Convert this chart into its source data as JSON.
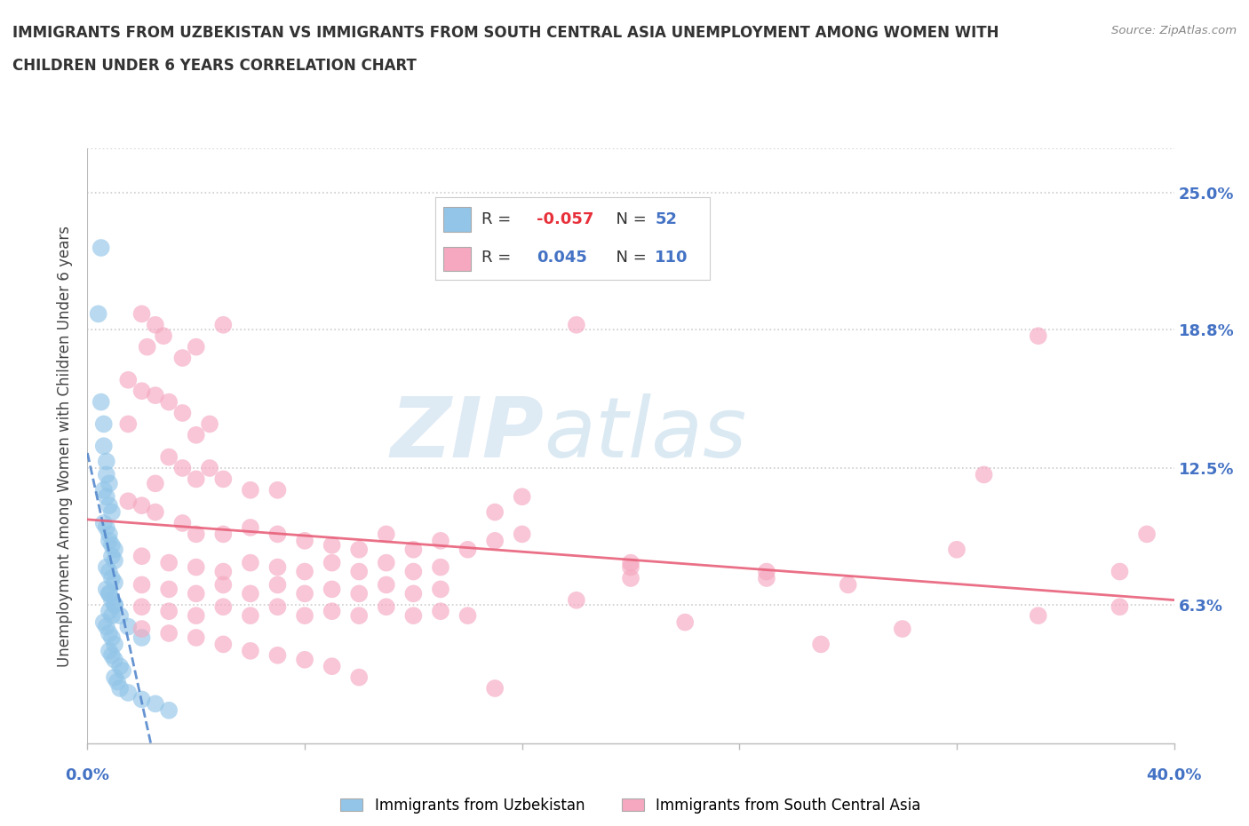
{
  "title_line1": "IMMIGRANTS FROM UZBEKISTAN VS IMMIGRANTS FROM SOUTH CENTRAL ASIA UNEMPLOYMENT AMONG WOMEN WITH",
  "title_line2": "CHILDREN UNDER 6 YEARS CORRELATION CHART",
  "source": "Source: ZipAtlas.com",
  "ylabel": "Unemployment Among Women with Children Under 6 years",
  "ytick_labels": [
    "25.0%",
    "18.8%",
    "12.5%",
    "6.3%"
  ],
  "ytick_values": [
    0.25,
    0.188,
    0.125,
    0.063
  ],
  "xlim": [
    0.0,
    0.4
  ],
  "ylim": [
    0.0,
    0.27
  ],
  "legend_blue_R": "-0.057",
  "legend_blue_N": "52",
  "legend_pink_R": "0.045",
  "legend_pink_N": "110",
  "legend_blue_label": "Immigrants from Uzbekistan",
  "legend_pink_label": "Immigrants from South Central Asia",
  "blue_color": "#92C5E8",
  "pink_color": "#F5A8C0",
  "trend_blue_color": "#5588CC",
  "trend_pink_color": "#E8607A",
  "watermark_zip": "ZIP",
  "watermark_atlas": "atlas",
  "blue_scatter_x": [
    0.005,
    0.004,
    0.005,
    0.006,
    0.006,
    0.007,
    0.007,
    0.008,
    0.006,
    0.007,
    0.008,
    0.009,
    0.006,
    0.007,
    0.008,
    0.008,
    0.009,
    0.01,
    0.009,
    0.01,
    0.007,
    0.008,
    0.009,
    0.01,
    0.007,
    0.008,
    0.009,
    0.01,
    0.008,
    0.009,
    0.006,
    0.007,
    0.008,
    0.009,
    0.01,
    0.008,
    0.009,
    0.01,
    0.012,
    0.013,
    0.01,
    0.011,
    0.012,
    0.015,
    0.02,
    0.025,
    0.03,
    0.008,
    0.01,
    0.012,
    0.015,
    0.02
  ],
  "blue_scatter_y": [
    0.225,
    0.195,
    0.155,
    0.145,
    0.135,
    0.128,
    0.122,
    0.118,
    0.115,
    0.112,
    0.108,
    0.105,
    0.1,
    0.098,
    0.095,
    0.092,
    0.09,
    0.088,
    0.085,
    0.083,
    0.08,
    0.078,
    0.075,
    0.073,
    0.07,
    0.068,
    0.065,
    0.063,
    0.06,
    0.058,
    0.055,
    0.053,
    0.05,
    0.048,
    0.045,
    0.042,
    0.04,
    0.038,
    0.035,
    0.033,
    0.03,
    0.028,
    0.025,
    0.023,
    0.02,
    0.018,
    0.015,
    0.068,
    0.063,
    0.058,
    0.053,
    0.048
  ],
  "pink_scatter_x": [
    0.02,
    0.025,
    0.028,
    0.022,
    0.04,
    0.035,
    0.05,
    0.18,
    0.015,
    0.02,
    0.025,
    0.03,
    0.035,
    0.015,
    0.04,
    0.045,
    0.03,
    0.035,
    0.04,
    0.025,
    0.045,
    0.05,
    0.06,
    0.07,
    0.015,
    0.02,
    0.025,
    0.035,
    0.04,
    0.05,
    0.06,
    0.07,
    0.08,
    0.09,
    0.1,
    0.11,
    0.12,
    0.13,
    0.14,
    0.15,
    0.02,
    0.03,
    0.04,
    0.05,
    0.06,
    0.07,
    0.08,
    0.09,
    0.1,
    0.11,
    0.12,
    0.13,
    0.02,
    0.03,
    0.04,
    0.05,
    0.06,
    0.07,
    0.08,
    0.09,
    0.1,
    0.11,
    0.12,
    0.13,
    0.02,
    0.03,
    0.04,
    0.05,
    0.06,
    0.07,
    0.08,
    0.09,
    0.1,
    0.11,
    0.12,
    0.13,
    0.14,
    0.02,
    0.03,
    0.04,
    0.05,
    0.06,
    0.07,
    0.08,
    0.09,
    0.1,
    0.15,
    0.2,
    0.25,
    0.3,
    0.33,
    0.35,
    0.38,
    0.39,
    0.35,
    0.38,
    0.16,
    0.2,
    0.25,
    0.16,
    0.2,
    0.28,
    0.32,
    0.15,
    0.18,
    0.22,
    0.27
  ],
  "pink_scatter_y": [
    0.195,
    0.19,
    0.185,
    0.18,
    0.18,
    0.175,
    0.19,
    0.19,
    0.165,
    0.16,
    0.158,
    0.155,
    0.15,
    0.145,
    0.14,
    0.145,
    0.13,
    0.125,
    0.12,
    0.118,
    0.125,
    0.12,
    0.115,
    0.115,
    0.11,
    0.108,
    0.105,
    0.1,
    0.095,
    0.095,
    0.098,
    0.095,
    0.092,
    0.09,
    0.088,
    0.095,
    0.088,
    0.092,
    0.088,
    0.092,
    0.085,
    0.082,
    0.08,
    0.078,
    0.082,
    0.08,
    0.078,
    0.082,
    0.078,
    0.082,
    0.078,
    0.08,
    0.072,
    0.07,
    0.068,
    0.072,
    0.068,
    0.072,
    0.068,
    0.07,
    0.068,
    0.072,
    0.068,
    0.07,
    0.062,
    0.06,
    0.058,
    0.062,
    0.058,
    0.062,
    0.058,
    0.06,
    0.058,
    0.062,
    0.058,
    0.06,
    0.058,
    0.052,
    0.05,
    0.048,
    0.045,
    0.042,
    0.04,
    0.038,
    0.035,
    0.03,
    0.025,
    0.08,
    0.078,
    0.052,
    0.122,
    0.058,
    0.078,
    0.095,
    0.185,
    0.062,
    0.095,
    0.075,
    0.075,
    0.112,
    0.082,
    0.072,
    0.088,
    0.105,
    0.065,
    0.055,
    0.045
  ]
}
